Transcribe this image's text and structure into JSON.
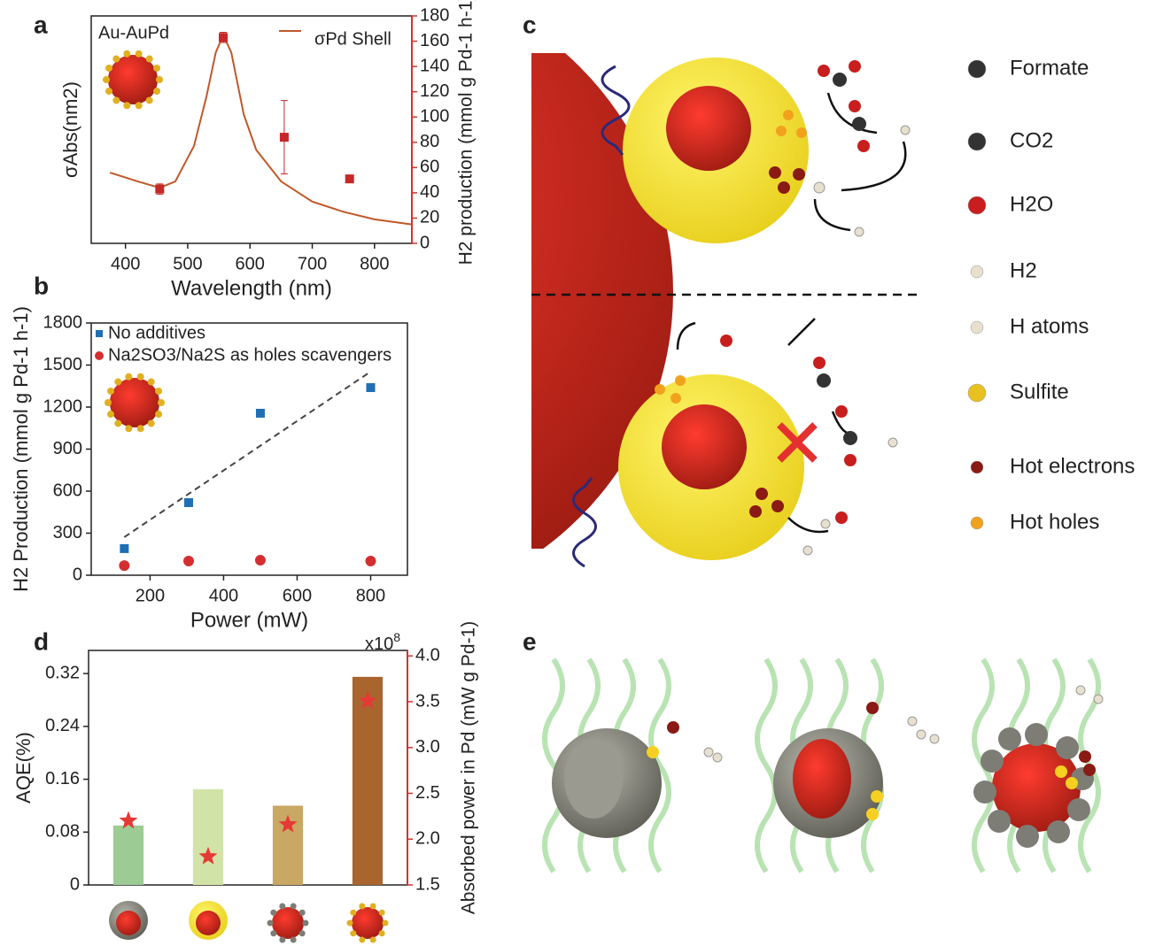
{
  "panels": [
    "a",
    "b",
    "c",
    "d",
    "e"
  ],
  "chart_data": [
    {
      "type": "line",
      "title": "Au-AuPd",
      "xlabel": "Wavelength (nm)",
      "ylabel": "σAbs(nm2)",
      "y2label": "H2 production (mmol g Pd-1 h-1)",
      "xlim": [
        345,
        860
      ],
      "xticks": [
        400,
        500,
        600,
        700,
        800
      ],
      "ylim": [
        0,
        180
      ],
      "y2lim": [
        0,
        180
      ],
      "y2ticks": [
        0,
        20,
        40,
        60,
        80,
        100,
        120,
        140,
        160,
        180
      ],
      "y2color": "#d0342c",
      "series": [
        {
          "name": "σPd Shell",
          "color": "#c0582a",
          "x": [
            375,
            420,
            455,
            480,
            510,
            530,
            545,
            557,
            570,
            590,
            610,
            650,
            700,
            750,
            800,
            860
          ],
          "values": [
            56,
            49,
            44,
            49,
            77,
            116,
            151,
            165,
            151,
            102,
            74,
            49,
            33,
            25,
            19,
            15
          ]
        },
        {
          "type": "scatter",
          "axis": "y2",
          "marker": "square",
          "color": "#c62828",
          "x": [
            455,
            557,
            655,
            760
          ],
          "values": [
            43,
            163,
            84,
            51
          ],
          "errors": [
            4,
            4,
            29,
            3
          ]
        }
      ]
    },
    {
      "type": "scatter",
      "xlabel": "Power (mW)",
      "ylabel": "H2 Production (mmol g Pd-1 h-1)",
      "xlim": [
        40,
        900
      ],
      "xticks": [
        200,
        400,
        600,
        800
      ],
      "ylim": [
        0,
        1800
      ],
      "yticks": [
        0,
        300,
        600,
        900,
        1200,
        1500,
        1800
      ],
      "series": [
        {
          "name": "No additives",
          "marker": "square",
          "color": "#1f6fb4",
          "x": [
            130,
            305,
            500,
            800
          ],
          "values": [
            190,
            518,
            1156,
            1339
          ]
        },
        {
          "name": "Na2SO3/Na2S as holes scavengers",
          "marker": "circle",
          "color": "#d32f2f",
          "x": [
            130,
            305,
            500,
            800
          ],
          "values": [
            69,
            101,
            107,
            101
          ]
        },
        {
          "type": "line",
          "dash": true,
          "color": "#444",
          "x": [
            130,
            800
          ],
          "values": [
            272,
            1453
          ]
        }
      ]
    },
    {
      "type": "bar",
      "ylabel": "AQE(%)",
      "y2label": "Absorbed power in Pd (mW g Pd-1)",
      "y2_multiplier": {
        "base": "x10",
        "exponent": "8"
      },
      "categories": [
        null,
        null,
        null,
        null
      ],
      "ylim": [
        0,
        0.355
      ],
      "yticks": [
        0,
        0.08,
        0.16,
        0.24,
        0.32
      ],
      "y2lim": [
        1.5,
        4.06
      ],
      "y2color": "#d0342c",
      "y2ticks": [
        1.5,
        {
          "value": 2,
          "label": "2.0"
        },
        2.5,
        {
          "value": 3,
          "label": "3.0"
        },
        3.5,
        {
          "value": 4,
          "label": "4.0"
        }
      ],
      "series": [
        {
          "colors": [
            "#9ccc94",
            "#d2e3a8",
            "#c9a863",
            "#a9652e"
          ],
          "values": [
            0.09,
            0.145,
            0.12,
            0.315
          ]
        },
        {
          "type": "scatter",
          "axis": "y2",
          "marker": "star",
          "color": "#e53935",
          "values": [
            2.2,
            1.81,
            2.16,
            3.51
          ]
        }
      ]
    }
  ],
  "legend_c": [
    "Formate",
    "CO2",
    "H2O",
    "H2",
    "H atoms",
    "Sulfite",
    "Hot electrons",
    "Hot holes"
  ]
}
